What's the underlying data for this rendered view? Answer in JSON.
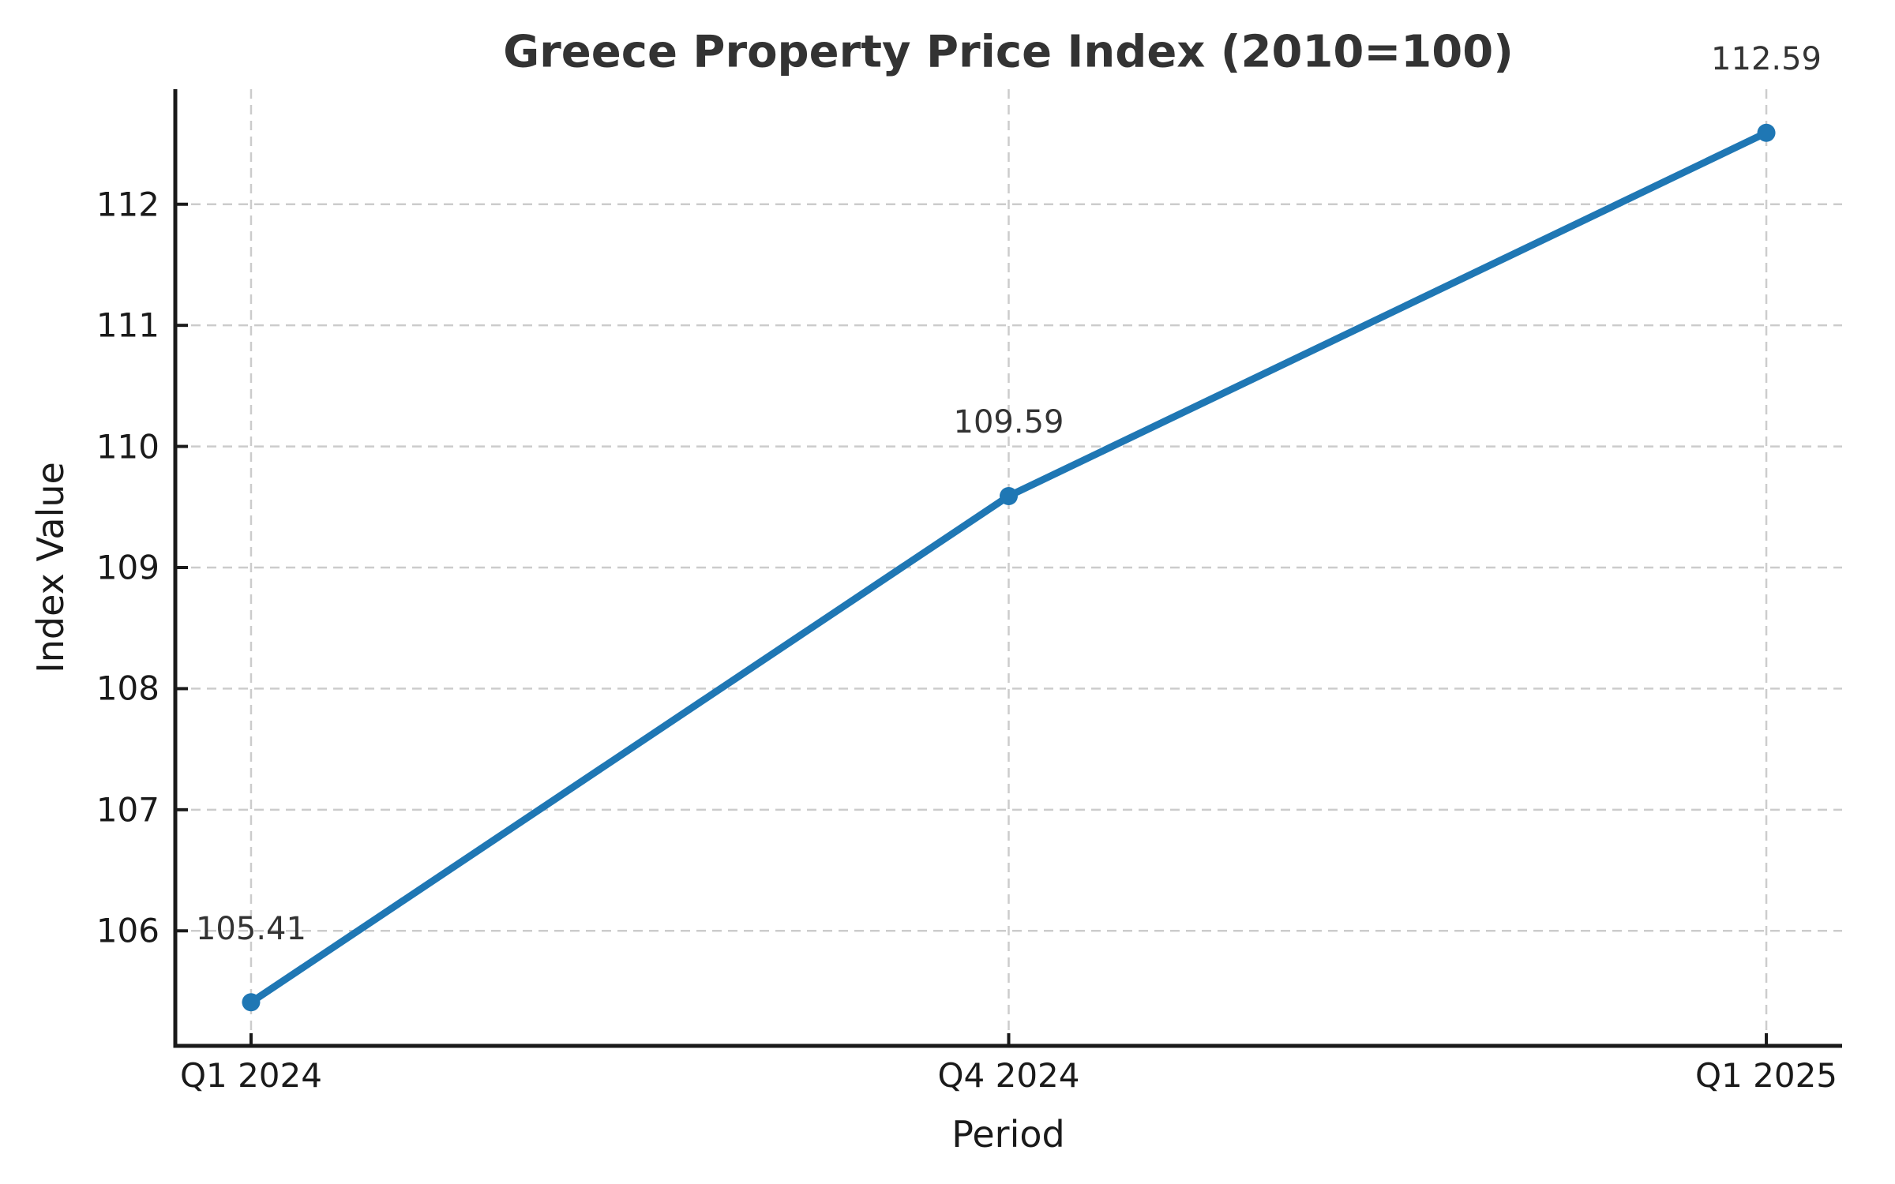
{
  "chart_data": {
    "type": "line",
    "title": "Greece Property Price Index (2010=100)",
    "xlabel": "Period",
    "ylabel": "Index Value",
    "categories": [
      "Q1 2024",
      "Q4 2024",
      "Q1 2025"
    ],
    "values": [
      105.41,
      109.59,
      112.59
    ],
    "point_labels": [
      "105.41",
      "109.59",
      "112.59"
    ],
    "yticks": [
      106,
      107,
      108,
      109,
      110,
      111,
      112
    ],
    "ylim": [
      105.05,
      112.95
    ],
    "grid": true,
    "legend": "none",
    "line_color": "#1f77b4",
    "marker_color": "#1f77b4",
    "grid_color": "#cccccc",
    "spine_color": "#1a1a1a",
    "text_color": "#1a1a1a",
    "title_color": "#333333",
    "annotation_color": "#333333"
  }
}
